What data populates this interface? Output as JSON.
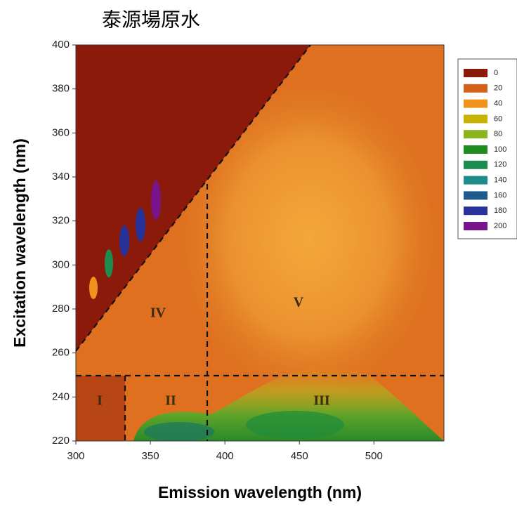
{
  "chart_data": {
    "type": "contour",
    "title": "泰源場原水",
    "x_label": "Emission wavelength (nm)",
    "y_label": "Excitation wavelength (nm)",
    "xlim": [
      300,
      547
    ],
    "ylim": [
      220,
      400
    ],
    "xticks": [
      300,
      350,
      400,
      450,
      500
    ],
    "yticks": [
      220,
      240,
      260,
      280,
      300,
      320,
      340,
      360,
      380,
      400
    ],
    "levels": [
      0,
      20,
      40,
      60,
      80,
      100,
      120,
      140,
      160,
      180,
      200
    ],
    "level_colors": [
      "#8b1a0a",
      "#d4611a",
      "#f0921e",
      "#c8b400",
      "#8cb41e",
      "#1e8c1e",
      "#1e8c50",
      "#1e8c8c",
      "#1e5a8c",
      "#28329b",
      "#78148c"
    ],
    "annotations": [
      "I",
      "II",
      "III",
      "IV",
      "V"
    ]
  }
}
